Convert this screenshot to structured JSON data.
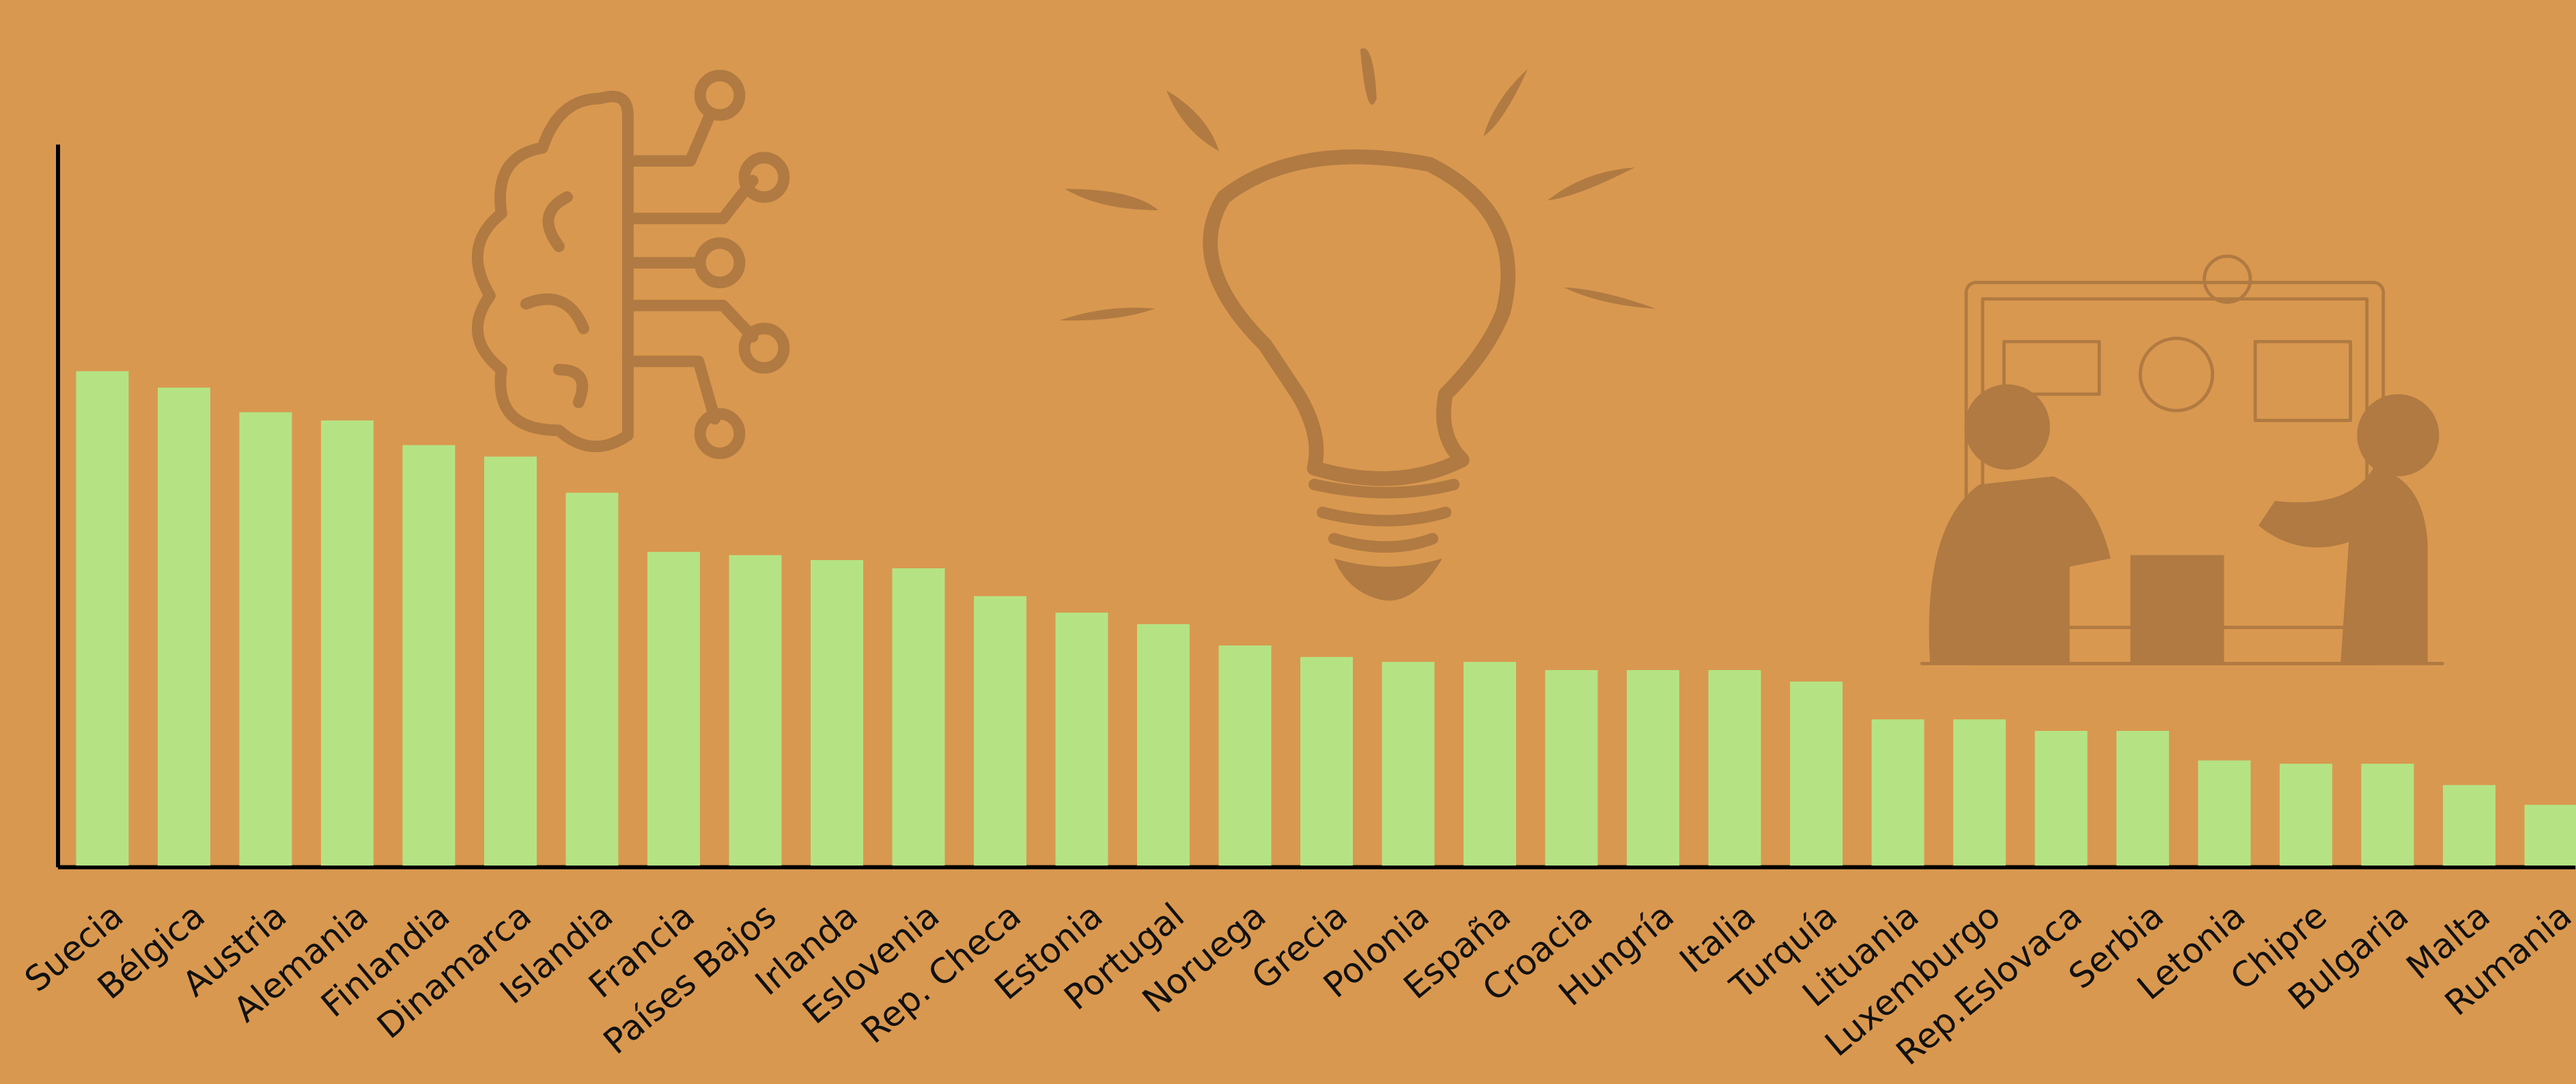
{
  "chart_data": {
    "type": "bar",
    "categories": [
      "Suecia",
      "Bélgica",
      "Austria",
      "Alemania",
      "Finlandia",
      "Dinamarca",
      "Islandia",
      "Francia",
      "Países Bajos",
      "Irlanda",
      "Eslovenia",
      "Rep. Checa",
      "Estonia",
      "Portugal",
      "Noruega",
      "Grecia",
      "Polonia",
      "España",
      "Croacia",
      "Hungría",
      "Italia",
      "Turquía",
      "Lituania",
      "Luxemburgo",
      "Rep.Eslovaca",
      "Serbia",
      "Letonia",
      "Chipre",
      "Bulgaria",
      "Malta",
      "Rumania"
    ],
    "values": [
      301,
      291,
      276,
      271,
      256,
      249,
      227,
      191,
      189,
      186,
      181,
      164,
      154,
      147,
      134,
      127,
      124,
      124,
      119,
      119,
      119,
      112,
      89,
      89,
      82,
      82,
      64,
      62,
      62,
      49,
      37
    ],
    "color": "#b5e384",
    "ylim": [
      0,
      439
    ]
  }
}
